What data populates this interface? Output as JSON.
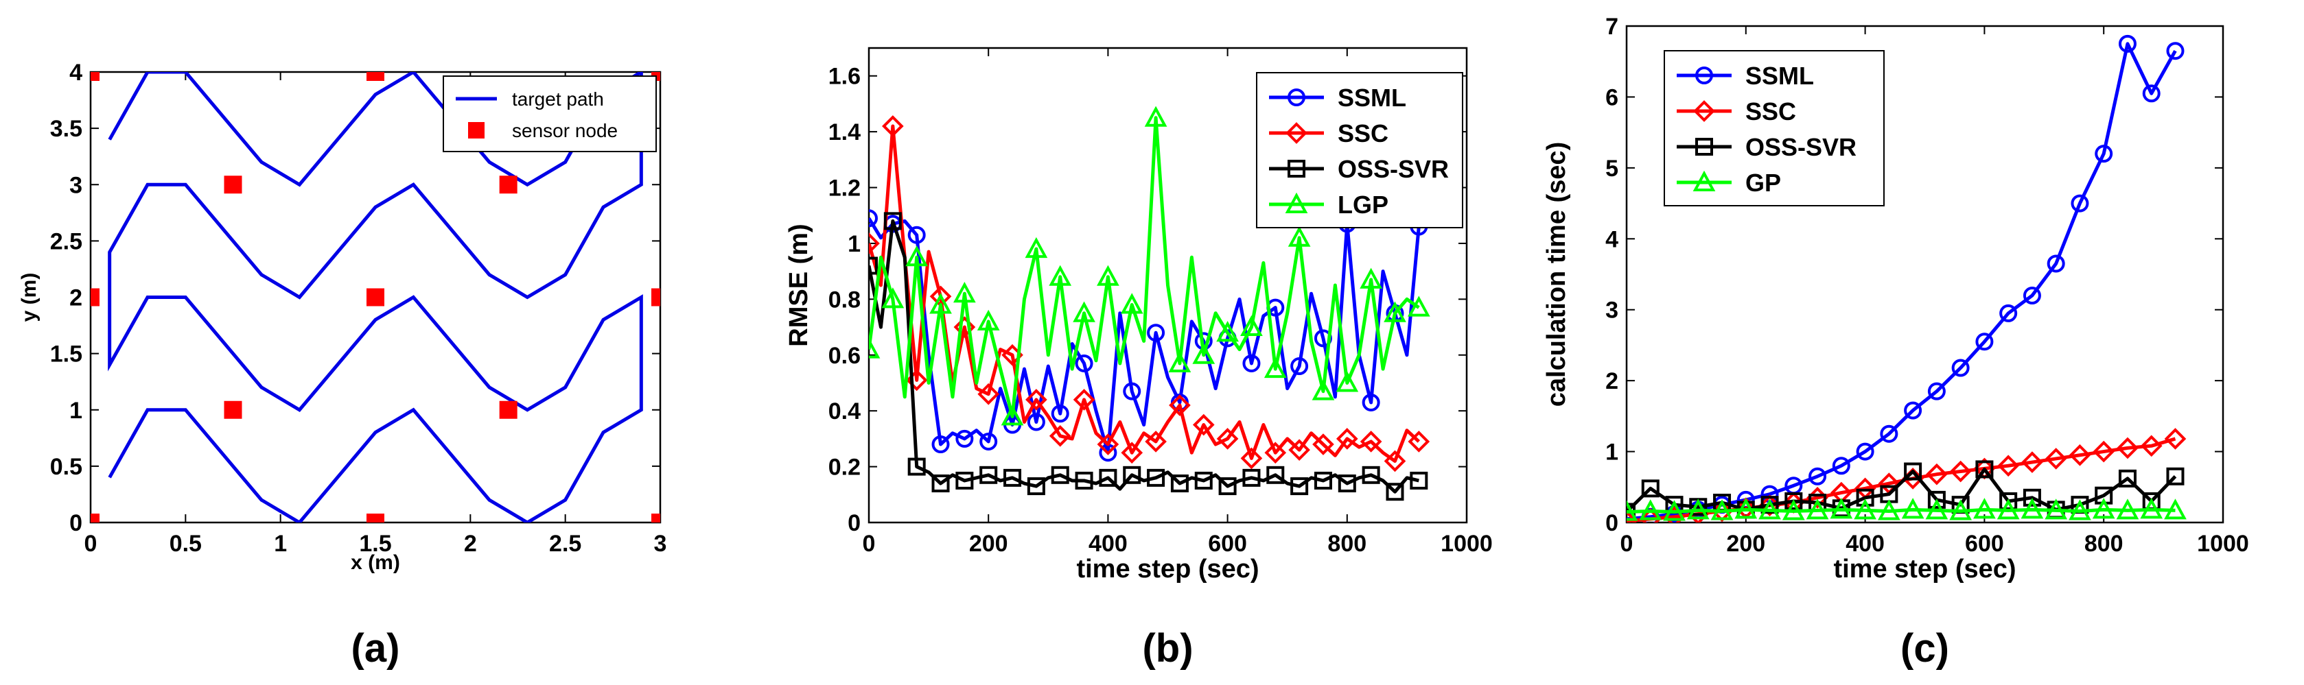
{
  "chart_data": [
    {
      "panel_label": "(a)",
      "type": "line",
      "xlabel": "x (m)",
      "ylabel": "y (m)",
      "xlim": [
        0,
        3
      ],
      "ylim": [
        0,
        4
      ],
      "xticks": [
        "0",
        "0.5",
        "1",
        "1.5",
        "2",
        "2.5",
        "3"
      ],
      "yticks": [
        "0",
        "0.5",
        "1",
        "1.5",
        "2",
        "2.5",
        "3",
        "3.5",
        "4"
      ],
      "legend": {
        "placement": "top-right",
        "entries": [
          "target path",
          "sensor node"
        ]
      },
      "series": [
        {
          "name": "target path",
          "color": "#0000e6",
          "x": [
            0.1,
            0.3,
            0.5,
            0.9,
            1.1,
            1.5,
            1.7,
            2.1,
            2.3,
            2.5,
            2.7,
            2.9,
            2.9,
            2.7,
            2.5,
            2.3,
            2.1,
            1.7,
            1.5,
            1.1,
            0.9,
            0.5,
            0.3,
            0.1,
            0.1,
            0.3,
            0.5,
            0.9,
            1.1,
            1.5,
            1.7,
            2.1,
            2.3,
            2.5,
            2.7,
            2.9,
            2.9,
            2.7,
            2.5,
            2.3,
            2.1,
            1.7,
            1.5,
            1.1,
            0.9,
            0.5,
            0.3,
            0.1
          ],
          "y": [
            0.4,
            1.0,
            1.0,
            0.2,
            0.0,
            0.8,
            1.0,
            0.2,
            0.0,
            0.2,
            0.8,
            1.0,
            2.0,
            1.8,
            1.2,
            1.0,
            1.2,
            2.0,
            1.8,
            1.0,
            1.2,
            2.0,
            2.0,
            1.4,
            2.4,
            3.0,
            3.0,
            2.2,
            2.0,
            2.8,
            3.0,
            2.2,
            2.0,
            2.2,
            2.8,
            3.0,
            4.0,
            3.8,
            3.2,
            3.0,
            3.2,
            4.0,
            3.8,
            3.0,
            3.2,
            4.0,
            4.0,
            3.4
          ]
        },
        {
          "name": "sensor node",
          "color": "#ff0000",
          "x": [
            0,
            1.5,
            3,
            0.75,
            2.2,
            0,
            1.5,
            3,
            0.75,
            2.2,
            0,
            1.5,
            3
          ],
          "y": [
            0,
            0,
            0,
            1,
            1,
            2,
            2,
            2,
            3,
            3,
            4,
            4,
            4
          ]
        }
      ]
    },
    {
      "panel_label": "(b)",
      "type": "line",
      "xlabel": "time step (sec)",
      "ylabel": "RMSE (m)",
      "xlim": [
        0,
        1000
      ],
      "ylim": [
        0,
        1.7
      ],
      "xticks": [
        "0",
        "200",
        "400",
        "600",
        "800",
        "1000"
      ],
      "yticks": [
        "0",
        "0.2",
        "0.4",
        "0.6",
        "0.8",
        "1",
        "1.2",
        "1.4",
        "1.6"
      ],
      "legend": {
        "placement": "top-right",
        "entries": [
          "SSML",
          "SSC",
          "OSS-SVR",
          "LGP"
        ]
      },
      "x": [
        0,
        20,
        40,
        60,
        80,
        100,
        120,
        140,
        160,
        180,
        200,
        220,
        240,
        260,
        280,
        300,
        320,
        340,
        360,
        380,
        400,
        420,
        440,
        460,
        480,
        500,
        520,
        540,
        560,
        580,
        600,
        620,
        640,
        660,
        680,
        700,
        720,
        740,
        760,
        780,
        800,
        820,
        840,
        860,
        880,
        900,
        920
      ],
      "series": [
        {
          "name": "SSML",
          "color": "#0000ff",
          "marker": "circle",
          "values": [
            1.09,
            1.02,
            1.07,
            1.08,
            1.03,
            0.6,
            0.28,
            0.32,
            0.3,
            0.33,
            0.29,
            0.48,
            0.35,
            0.55,
            0.36,
            0.56,
            0.39,
            0.64,
            0.57,
            0.4,
            0.25,
            0.75,
            0.47,
            0.35,
            0.68,
            0.52,
            0.43,
            0.72,
            0.65,
            0.48,
            0.66,
            0.8,
            0.57,
            0.74,
            0.77,
            0.48,
            0.56,
            0.82,
            0.66,
            0.45,
            1.07,
            0.6,
            0.43,
            0.9,
            0.75,
            0.6,
            1.06
          ]
        },
        {
          "name": "SSC",
          "color": "#ff0000",
          "marker": "diamond",
          "values": [
            1.0,
            0.85,
            1.42,
            0.95,
            0.51,
            0.97,
            0.81,
            0.5,
            0.7,
            0.48,
            0.46,
            0.62,
            0.6,
            0.36,
            0.44,
            0.38,
            0.31,
            0.3,
            0.44,
            0.32,
            0.28,
            0.36,
            0.25,
            0.32,
            0.29,
            0.36,
            0.42,
            0.25,
            0.35,
            0.28,
            0.3,
            0.36,
            0.23,
            0.35,
            0.25,
            0.3,
            0.26,
            0.32,
            0.28,
            0.24,
            0.3,
            0.27,
            0.29,
            0.25,
            0.22,
            0.33,
            0.29
          ]
        },
        {
          "name": "OSS-SVR",
          "color": "#000000",
          "marker": "square",
          "values": [
            0.92,
            0.7,
            1.08,
            0.95,
            0.2,
            0.18,
            0.14,
            0.17,
            0.15,
            0.16,
            0.17,
            0.15,
            0.16,
            0.14,
            0.13,
            0.16,
            0.17,
            0.15,
            0.15,
            0.14,
            0.16,
            0.12,
            0.17,
            0.15,
            0.16,
            0.18,
            0.14,
            0.16,
            0.15,
            0.17,
            0.13,
            0.15,
            0.16,
            0.15,
            0.17,
            0.14,
            0.13,
            0.16,
            0.15,
            0.17,
            0.14,
            0.16,
            0.17,
            0.15,
            0.11,
            0.16,
            0.15
          ]
        },
        {
          "name": "LGP",
          "color": "#00ff00",
          "marker": "triangle",
          "values": [
            0.62,
            0.95,
            0.8,
            0.45,
            0.95,
            0.5,
            0.78,
            0.45,
            0.82,
            0.5,
            0.72,
            0.55,
            0.38,
            0.8,
            0.98,
            0.6,
            0.88,
            0.55,
            0.75,
            0.58,
            0.88,
            0.57,
            0.78,
            0.65,
            1.45,
            0.85,
            0.57,
            0.95,
            0.6,
            0.75,
            0.68,
            0.62,
            0.7,
            0.93,
            0.55,
            0.75,
            1.02,
            0.65,
            0.47,
            0.85,
            0.5,
            0.6,
            0.87,
            0.55,
            0.75,
            0.8,
            0.77
          ]
        }
      ]
    },
    {
      "panel_label": "(c)",
      "type": "line",
      "xlabel": "time step (sec)",
      "ylabel": "calculation time (sec)",
      "xlim": [
        0,
        1000
      ],
      "ylim": [
        0,
        7
      ],
      "xticks": [
        "0",
        "200",
        "400",
        "600",
        "800",
        "1000"
      ],
      "yticks": [
        "0",
        "1",
        "2",
        "3",
        "4",
        "5",
        "6",
        "7"
      ],
      "legend": {
        "placement": "top-left",
        "entries": [
          "SSML",
          "SSC",
          "OSS-SVR",
          "GP"
        ]
      },
      "x": [
        0,
        40,
        80,
        120,
        160,
        200,
        240,
        280,
        320,
        360,
        400,
        440,
        480,
        520,
        560,
        600,
        640,
        680,
        720,
        760,
        800,
        840,
        880,
        920
      ],
      "series": [
        {
          "name": "SSML",
          "color": "#0000ff",
          "marker": "circle",
          "values": [
            0.05,
            0.08,
            0.12,
            0.18,
            0.25,
            0.32,
            0.4,
            0.52,
            0.65,
            0.8,
            1.0,
            1.25,
            1.58,
            1.85,
            2.18,
            2.55,
            2.95,
            3.2,
            3.65,
            4.5,
            5.2,
            6.75,
            6.05,
            6.65
          ]
        },
        {
          "name": "SSC",
          "color": "#ff0000",
          "marker": "diamond",
          "values": [
            0.02,
            0.05,
            0.08,
            0.12,
            0.16,
            0.2,
            0.24,
            0.28,
            0.35,
            0.42,
            0.48,
            0.55,
            0.62,
            0.68,
            0.72,
            0.76,
            0.8,
            0.85,
            0.9,
            0.95,
            1.0,
            1.05,
            1.08,
            1.18
          ]
        },
        {
          "name": "OSS-SVR",
          "color": "#000000",
          "marker": "square",
          "values": [
            0.15,
            0.48,
            0.25,
            0.22,
            0.28,
            0.18,
            0.25,
            0.3,
            0.28,
            0.2,
            0.35,
            0.4,
            0.72,
            0.32,
            0.25,
            0.75,
            0.3,
            0.35,
            0.18,
            0.25,
            0.38,
            0.62,
            0.3,
            0.65
          ]
        },
        {
          "name": "GP",
          "color": "#00ff00",
          "marker": "triangle",
          "values": [
            0.15,
            0.16,
            0.15,
            0.17,
            0.16,
            0.18,
            0.17,
            0.16,
            0.17,
            0.18,
            0.17,
            0.16,
            0.18,
            0.17,
            0.16,
            0.18,
            0.17,
            0.18,
            0.17,
            0.16,
            0.18,
            0.17,
            0.18,
            0.17
          ]
        }
      ]
    }
  ]
}
